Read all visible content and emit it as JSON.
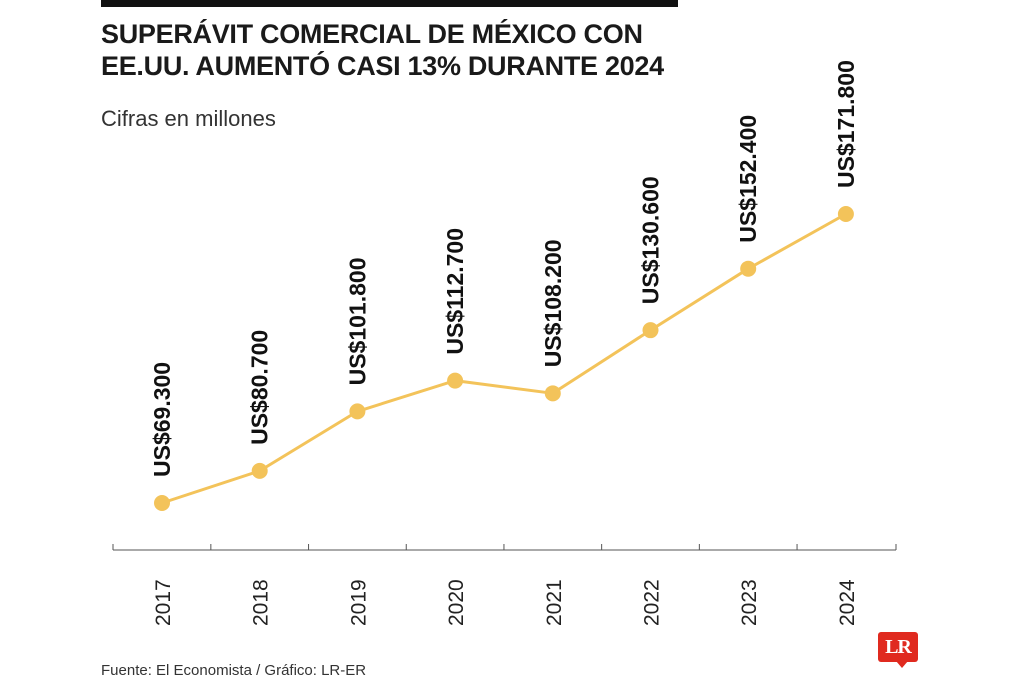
{
  "title_lines": [
    "SUPERÁVIT COMERCIAL DE MÉXICO CON",
    "EE.UU. AUMENTÓ CASI 13% DURANTE 2024"
  ],
  "subtitle": "Cifras en millones",
  "source": "Fuente: El Economista / Gráfico: LR-ER",
  "logo_text": "LR",
  "colors": {
    "line": "#f3c35a",
    "point": "#f3c35a",
    "axis": "#555555",
    "logo": "#e02a1f"
  },
  "chart_data": {
    "type": "line",
    "title": "SUPERÁVIT COMERCIAL DE MÉXICO CON EE.UU. AUMENTÓ CASI 13% DURANTE 2024",
    "subtitle": "Cifras en millones",
    "categories": [
      "2017",
      "2018",
      "2019",
      "2020",
      "2021",
      "2022",
      "2023",
      "2024"
    ],
    "values": [
      69300,
      80700,
      101800,
      112700,
      108200,
      130600,
      152400,
      171800
    ],
    "data_labels": [
      "US$69.300",
      "US$80.700",
      "US$101.800",
      "US$112.700",
      "US$108.200",
      "US$130.600",
      "US$152.400",
      "US$171.800"
    ],
    "grid": false,
    "legend": "none"
  }
}
